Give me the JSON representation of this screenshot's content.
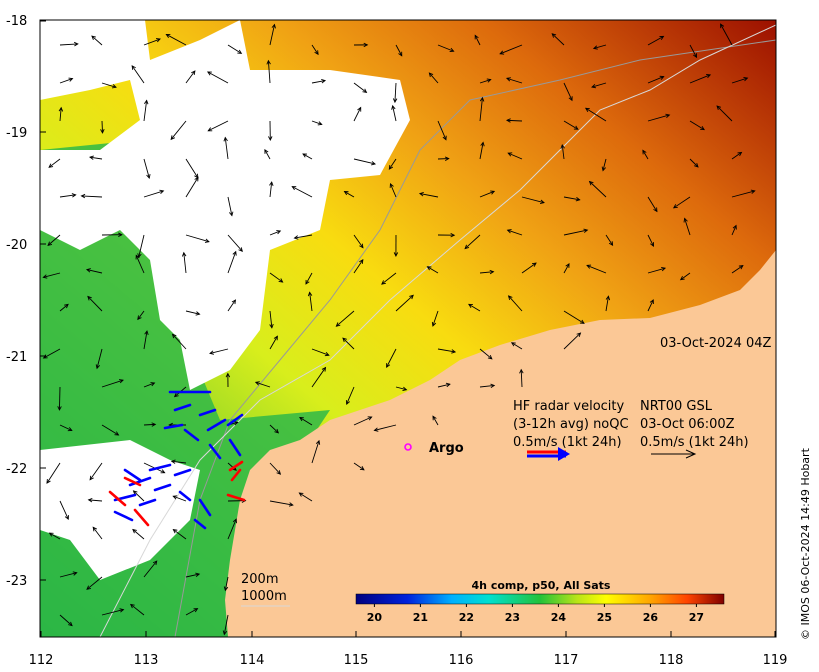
{
  "map": {
    "timestamp": "03-Oct-2024 04Z",
    "legend": {
      "line1_left": "HF radar velocity",
      "line1_right": "NRT00 GSL",
      "line2_left": "(3-12h avg) noQC",
      "line2_right": "03-Oct 06:00Z",
      "line3_left": "0.5m/s (1kt 24h)",
      "line3_right": "0.5m/s (1kt 24h)"
    },
    "argo_label": "Argo",
    "depth_labels": [
      "200m",
      "1000m"
    ],
    "credit": "© IMOS 06-Oct-2024 14:49 Hobart",
    "colorbar": {
      "title": "4h comp, p50, All Sats",
      "ticks": [
        "20",
        "21",
        "22",
        "23",
        "24",
        "25",
        "26",
        "27"
      ],
      "range": [
        19.6,
        27.6
      ]
    },
    "colors": {
      "land": "#fbc896",
      "cloud": "#ffffff",
      "radar_red": "#ff0000",
      "radar_blue": "#0000ff",
      "argo": "#ff00ff"
    }
  },
  "chart_data": {
    "type": "heatmap",
    "title": "",
    "subtitle": "4h comp, p50, All Sats",
    "xlabel": "",
    "ylabel": "",
    "xlim": [
      112,
      119
    ],
    "ylim": [
      -23.5,
      -18
    ],
    "x_ticks": [
      "112",
      "113",
      "114",
      "115",
      "116",
      "117",
      "118",
      "119"
    ],
    "y_ticks": [
      "-18",
      "-19",
      "-20",
      "-21",
      "-22",
      "-23"
    ],
    "argo_float": {
      "lon": 115.5,
      "lat": -21.8
    }
  }
}
